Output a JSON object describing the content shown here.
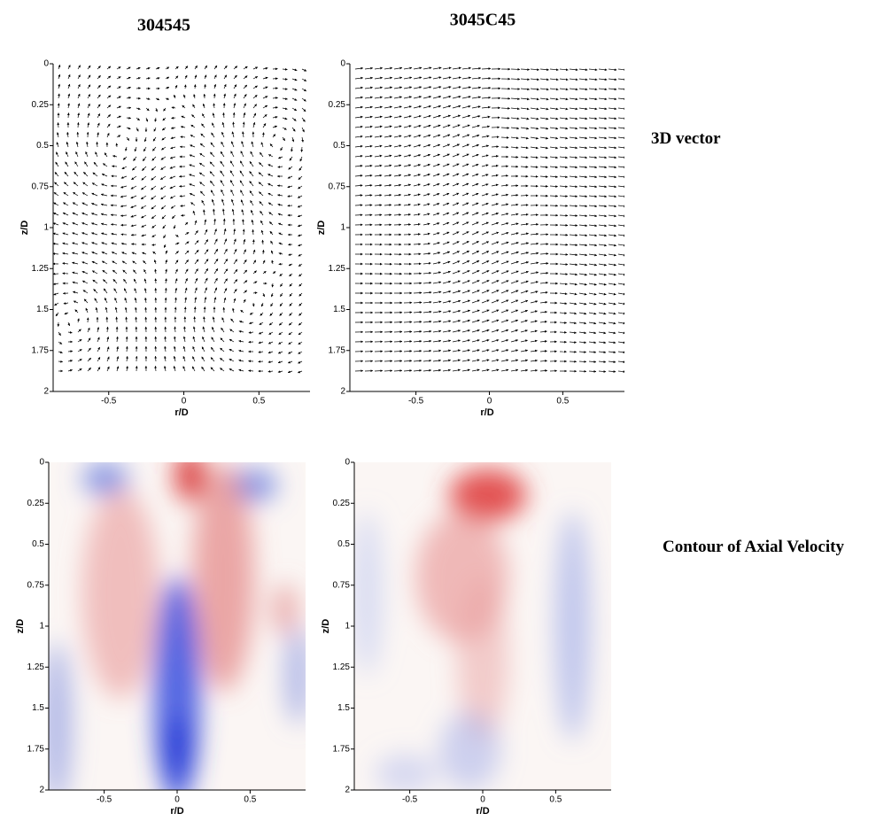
{
  "column_titles": [
    "304545",
    "3045C45"
  ],
  "row_labels": [
    "3D vector",
    "Contour of Axial Velocity"
  ],
  "chart_data": [
    {
      "type": "vector",
      "xlabel": "r/D",
      "ylabel": "z/D",
      "xlim": [
        -0.87,
        0.84
      ],
      "ylim": [
        0,
        2
      ],
      "y_inverted": true,
      "xticks": [
        -0.5,
        0,
        0.5
      ],
      "yticks": [
        0,
        0.25,
        0.5,
        0.75,
        1,
        1.25,
        1.5,
        1.75,
        2
      ]
    },
    {
      "type": "vector",
      "xlabel": "r/D",
      "ylabel": "z/D",
      "xlim": [
        -0.95,
        0.92
      ],
      "ylim": [
        0,
        2
      ],
      "y_inverted": true,
      "xticks": [
        -0.5,
        0,
        0.5
      ],
      "yticks": [
        0,
        0.25,
        0.5,
        0.75,
        1,
        1.25,
        1.5,
        1.75,
        2
      ]
    },
    {
      "type": "contour",
      "xlabel": "r/D",
      "ylabel": "z/D",
      "xlim": [
        -0.88,
        0.88
      ],
      "ylim": [
        0,
        2
      ],
      "y_inverted": true,
      "xticks": [
        -0.5,
        0,
        0.5
      ],
      "yticks": [
        0,
        0.25,
        0.5,
        0.75,
        1,
        1.25,
        1.5,
        1.75,
        2
      ]
    },
    {
      "type": "contour",
      "xlabel": "r/D",
      "ylabel": "z/D",
      "xlim": [
        -0.88,
        0.88
      ],
      "ylim": [
        0,
        2
      ],
      "y_inverted": true,
      "xticks": [
        -0.5,
        0,
        0.5
      ],
      "yticks": [
        0,
        0.25,
        0.5,
        0.75,
        1,
        1.25,
        1.5,
        1.75,
        2
      ]
    }
  ]
}
